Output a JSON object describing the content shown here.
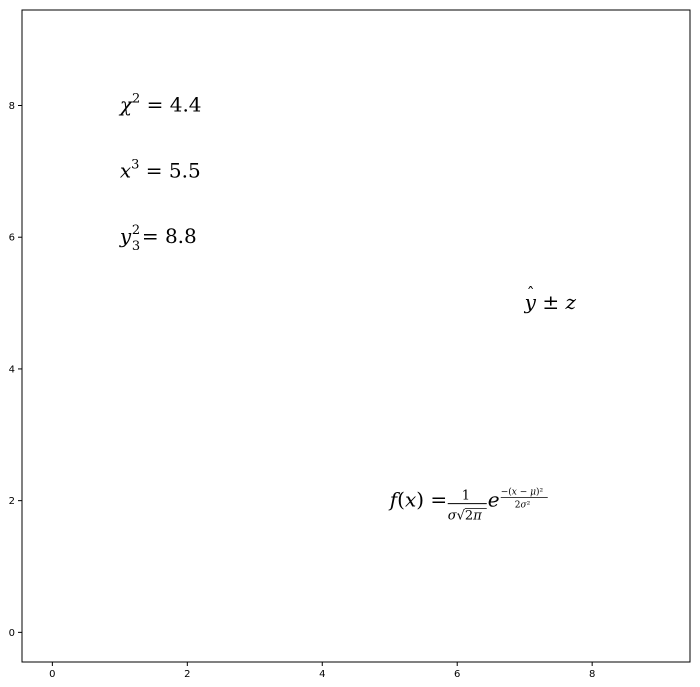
{
  "chart_data": {
    "type": "scatter",
    "title": "",
    "xlabel": "",
    "ylabel": "",
    "xlim": [
      -0.45,
      9.45
    ],
    "ylim": [
      -0.45,
      9.45
    ],
    "grid": false,
    "x_ticks": [
      0,
      2,
      4,
      6,
      8
    ],
    "y_ticks": [
      0,
      2,
      4,
      6,
      8
    ],
    "x_tick_labels": [
      "0",
      "2",
      "4",
      "6",
      "8"
    ],
    "y_tick_labels": [
      "0",
      "2",
      "4",
      "6",
      "8"
    ],
    "annotations": [
      {
        "name": "chi-squared",
        "x": 1,
        "y": 8,
        "text": "χ² = 4.4",
        "latex": "\\chi^2 = 4.4"
      },
      {
        "name": "x-cubed",
        "x": 1,
        "y": 7,
        "text": "x³ = 5.5",
        "latex": "x^3 = 5.5"
      },
      {
        "name": "y-sub-super",
        "x": 1,
        "y": 6,
        "text": "y₃² = 8.8",
        "latex": "y_3^2 = 8.8"
      },
      {
        "name": "y-hat-pm-z",
        "x": 7,
        "y": 5,
        "text": "ŷ ± z",
        "latex": "\\hat{y} \\pm z"
      },
      {
        "name": "gaussian",
        "x": 5,
        "y": 2,
        "text": "f(x) = 1/(σ√(2π)) e^(−(x−μ)²/(2σ²))",
        "latex": "f(x) = \\frac{1}{\\sigma\\sqrt{2\\pi}}e^{\\frac{-(x-\\mu)^2}{2\\sigma^2}}"
      }
    ]
  }
}
